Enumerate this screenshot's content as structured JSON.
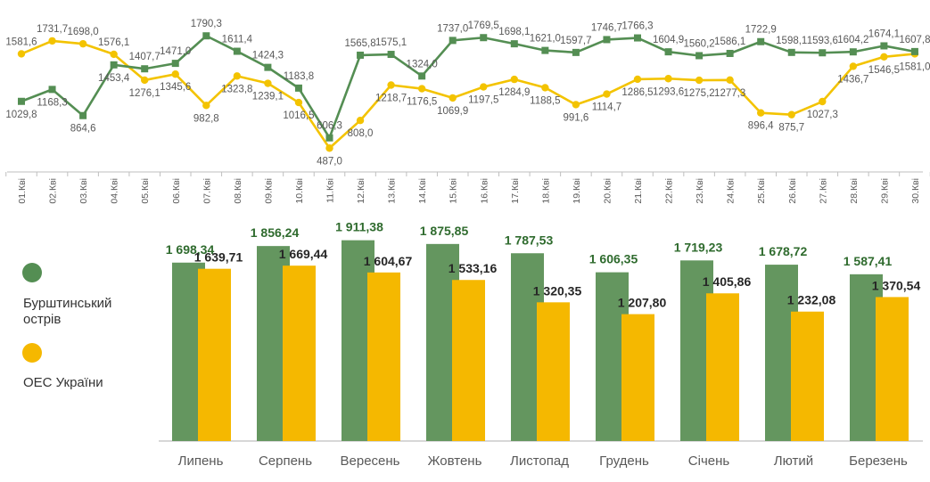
{
  "colors": {
    "green": "#548e53",
    "green_bar": "#64965f",
    "yellow": "#f5b800",
    "yellow_line": "#f3c300",
    "axis": "#bfbfbf",
    "label_green": "#2f6b2e",
    "label_dark": "#262626"
  },
  "chart_data": [
    {
      "type": "line",
      "title": "",
      "xlabel": "",
      "ylabel": "",
      "x": [
        "01.Кві",
        "02.Кві",
        "03.Кві",
        "04.Кві",
        "05.Кві",
        "06.Кві",
        "07.Кві",
        "08.Кві",
        "09.Кві",
        "10.Кві",
        "11.Кві",
        "12.Кві",
        "13.Кві",
        "14.Кві",
        "15.Кві",
        "16.Кві",
        "17.Кві",
        "18.Кві",
        "19.Кві",
        "20.Кві",
        "21.Кві",
        "22.Кві",
        "23.Кві",
        "24.Кві",
        "25.Кві",
        "26.Кві",
        "27.Кві",
        "28.Кві",
        "29.Кві",
        "30.Кві"
      ],
      "series": [
        {
          "name": "Бурштинський острів",
          "color": "#548e53",
          "values": [
            1029.8,
            1168.3,
            864.6,
            1453.4,
            1407.7,
            1471.0,
            1790.3,
            1611.4,
            1424.3,
            1183.8,
            606.3,
            1565.8,
            1575.1,
            1324.0,
            1737.0,
            1769.5,
            1698.1,
            1621.0,
            1597.7,
            1746.7,
            1766.3,
            1604.9,
            1560.2,
            1586.1,
            1722.9,
            1598.1,
            1593.6,
            1604.2,
            1674.1,
            1607.8
          ],
          "labels": [
            "1029,8",
            "1168,3",
            "864,6",
            "1453,4",
            "1407,7",
            "1471,0",
            "1790,3",
            "1611,4",
            "1424,3",
            "1183,8",
            "606,3",
            "1565,8",
            "1575,1",
            "1324,0",
            "1737,0",
            "1769,5",
            "1698,1",
            "1621,0",
            "1597,7",
            "1746,7",
            "1766,3",
            "1604,9",
            "1560,2",
            "1586,1",
            "1722,9",
            "1598,1",
            "1593,6",
            "1604,2",
            "1674,1",
            "1607,8"
          ]
        },
        {
          "name": "ОЕС України",
          "color": "#f5b800",
          "values": [
            1581.6,
            1731.7,
            1698.0,
            1576.1,
            1276.1,
            1345.6,
            982.8,
            1323.8,
            1239.1,
            1016.5,
            487.0,
            808.0,
            1218.7,
            1176.5,
            1069.9,
            1197.5,
            1284.9,
            1188.5,
            991.6,
            1114.7,
            1286.5,
            1293.6,
            1275.2,
            1277.3,
            896.4,
            875.7,
            1027.3,
            1436.7,
            1546.5,
            1581.0
          ],
          "labels": [
            "1581,6",
            "1731,7",
            "1698,0",
            "1576,1",
            "1276,1",
            "1345,6",
            "982,8",
            "1323,8",
            "1239,1",
            "1016,5",
            "487,0",
            "808,0",
            "1218,7",
            "1176,5",
            "1069,9",
            "1197,5",
            "1284,9",
            "1188,5",
            "991,6",
            "1114,7",
            "1286,5",
            "1293,6",
            "1275,2",
            "1277,3",
            "896,4",
            "875,7",
            "1027,3",
            "1436,7",
            "1546,5",
            "1581,0"
          ]
        }
      ]
    },
    {
      "type": "bar",
      "title": "",
      "xlabel": "",
      "ylabel": "",
      "categories": [
        "Липень",
        "Серпень",
        "Вересень",
        "Жовтень",
        "Листопад",
        "Грудень",
        "Січень",
        "Лютий",
        "Березень"
      ],
      "series": [
        {
          "name": "Бурштинський острів",
          "color": "#64965f",
          "values": [
            1698.34,
            1856.24,
            1911.38,
            1875.85,
            1787.53,
            1606.35,
            1719.23,
            1678.72,
            1587.41
          ],
          "labels": [
            "1 698,34",
            "1 856,24",
            "1 911,38",
            "1 875,85",
            "1 787,53",
            "1 606,35",
            "1 719,23",
            "1 678,72",
            "1 587,41"
          ]
        },
        {
          "name": "ОЕС України",
          "color": "#f5b800",
          "values": [
            1639.71,
            1669.44,
            1604.67,
            1533.16,
            1320.35,
            1207.8,
            1405.86,
            1232.08,
            1370.54
          ],
          "labels": [
            "1 639,71",
            "1 669,44",
            "1 604,67",
            "1 533,16",
            "1 320,35",
            "1 207,80",
            "1 405,86",
            "1 232,08",
            "1 370,54"
          ]
        }
      ]
    }
  ],
  "legend": [
    {
      "label_line1": "Бурштинський",
      "label_line2": "острів",
      "color": "#548e53"
    },
    {
      "label_line1": "ОЕС України",
      "label_line2": "",
      "color": "#f5b800"
    }
  ]
}
